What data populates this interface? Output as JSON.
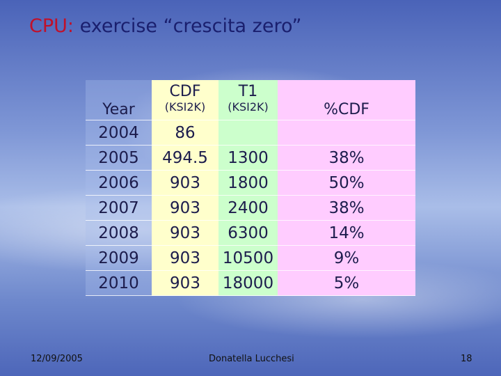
{
  "title": {
    "prefix": "CPU:",
    "text": "exercise “crescita zero”"
  },
  "table": {
    "headers": [
      {
        "name": "Year"
      },
      {
        "name": "CDF",
        "unit": "(KSI2K)"
      },
      {
        "name": "T1",
        "unit": "(KSI2K)"
      },
      {
        "name": "%CDF"
      }
    ],
    "rows": [
      [
        "2004",
        "86",
        null,
        null
      ],
      [
        "2005",
        "494.5",
        "1300",
        "38%"
      ],
      [
        "2006",
        "903",
        "1800",
        "50%"
      ],
      [
        "2007",
        "903",
        "2400",
        "38%"
      ],
      [
        "2008",
        "903",
        "6300",
        "14%"
      ],
      [
        "2009",
        "903",
        "10500",
        "9%"
      ],
      [
        "2010",
        "903",
        "18000",
        "5%"
      ]
    ]
  },
  "footer": {
    "date": "12/09/2005",
    "author": "Donatella Lucchesi",
    "page": "18"
  }
}
